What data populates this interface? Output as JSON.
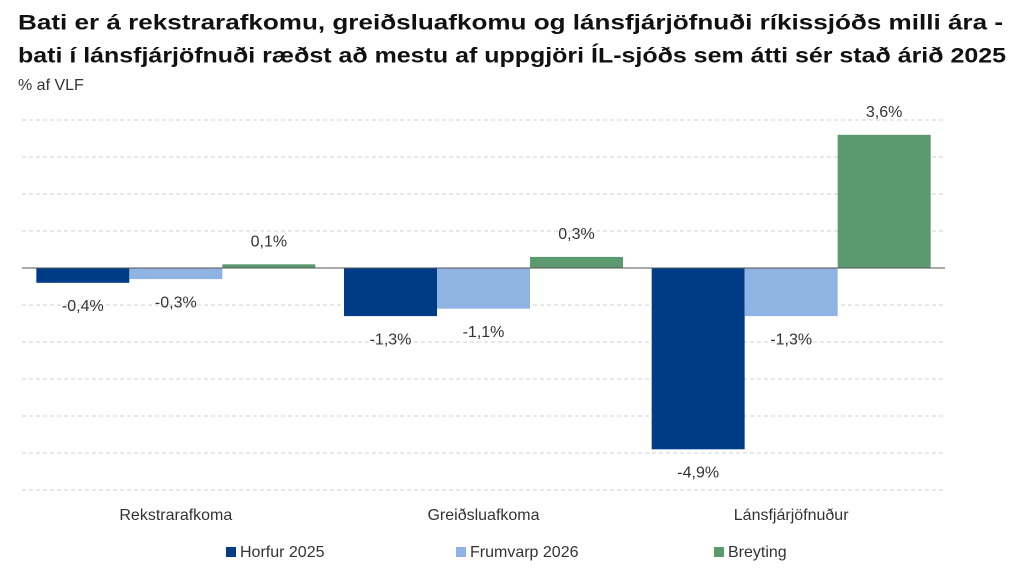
{
  "chart_data": {
    "type": "bar",
    "title": [
      "Bati er á rekstrarafkomu, greiðsluafkomu og lánsfjárjöfnuði ríkissjóðs milli ára -",
      "bati í lánsfjárjöfnuði ræðst að mestu af uppgjöri ÍL-sjóðs sem átti sér stað árið 2025"
    ],
    "subtitle": "% af VLF",
    "categories": [
      "Rekstrarafkoma",
      "Greiðsluafkoma",
      "Lánsfjárjöfnuður"
    ],
    "series": [
      {
        "name": "Horfur 2025",
        "color": "#003b86",
        "values": [
          -0.4,
          -1.3,
          -4.9
        ],
        "value_labels": [
          "-0,4%",
          "-1,3%",
          "-4,9%"
        ]
      },
      {
        "name": "Frumvarp 2026",
        "color": "#8fb4e3",
        "values": [
          -0.3,
          -1.1,
          -1.3
        ],
        "value_labels": [
          "-0,3%",
          "-1,1%",
          "-1,3%"
        ]
      },
      {
        "name": "Breyting",
        "color": "#5b9a6f",
        "values": [
          0.1,
          0.3,
          3.6
        ],
        "value_labels": [
          "0,1%",
          "0,3%",
          "3,6%"
        ]
      }
    ],
    "ylim": [
      -6,
      4
    ],
    "yticks": [
      -6,
      -5,
      -4,
      -3,
      -2,
      -1,
      0,
      1,
      2,
      3,
      4
    ],
    "grid": true
  }
}
